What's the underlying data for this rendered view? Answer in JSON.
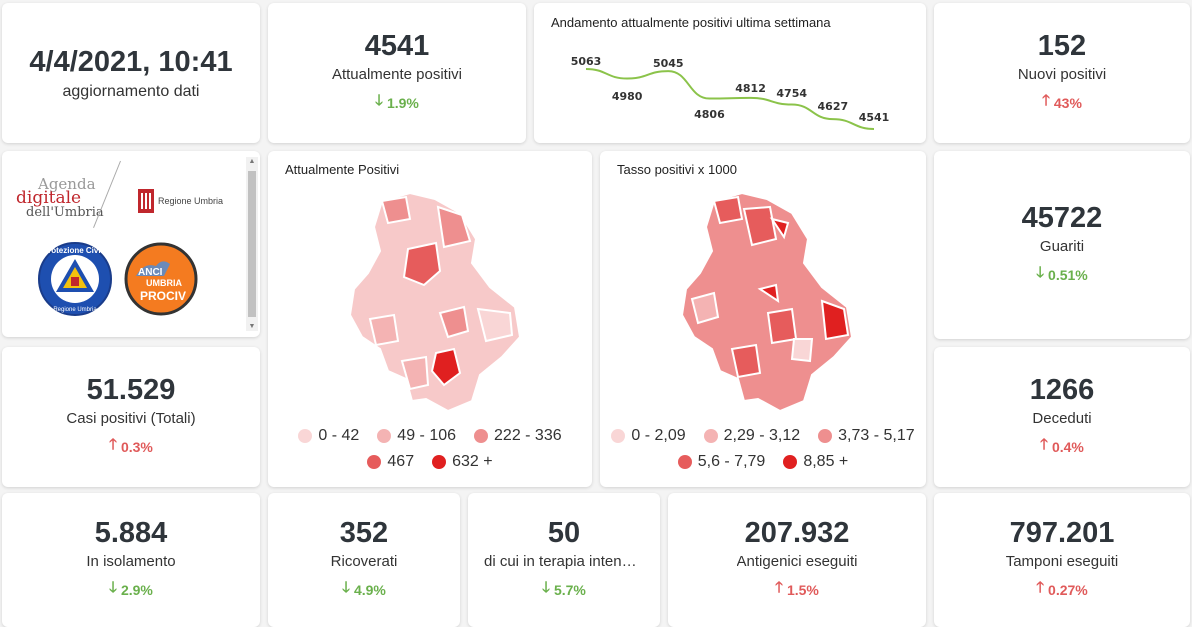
{
  "update": {
    "datetime": "4/4/2021, 10:41",
    "label": "aggiornamento dati"
  },
  "attualmente_positivi": {
    "value": "4541",
    "label": "Attualmente positivi",
    "delta": "1.9%",
    "direction": "down"
  },
  "trend": {
    "title": "Andamento attualmente positivi ultima settimana",
    "values": [
      5063,
      4980,
      5045,
      4806,
      4812,
      4754,
      4627,
      4541
    ],
    "labels": [
      "5063",
      "4980",
      "5045",
      "4806",
      "4812",
      "4754",
      "4627",
      "4541"
    ],
    "color": "#8bc34a"
  },
  "nuovi_positivi": {
    "value": "152",
    "label": "Nuovi positivi",
    "delta": "43%",
    "direction": "up"
  },
  "logos": {
    "agenda_line1": "Agenda",
    "agenda_line2": "digitale",
    "agenda_line3": "dell'Umbria",
    "regione": "Regione Umbria",
    "protezione_top": "Protezione Civile",
    "protezione_bottom": "Regione Umbria",
    "anci_line1": "ANCI",
    "anci_line2": "UMBRIA",
    "anci_line3": "PROCIV"
  },
  "map_positivi": {
    "title": "Attualmente Positivi",
    "legend": [
      {
        "label": "0 - 42",
        "color": "#f9d6d6"
      },
      {
        "label": "49 - 106",
        "color": "#f4b3b3"
      },
      {
        "label": "222 - 336",
        "color": "#ee8f8f"
      },
      {
        "label": "467",
        "color": "#e65c5c"
      },
      {
        "label": "632 +",
        "color": "#e02020"
      }
    ]
  },
  "map_tasso": {
    "title": "Tasso positivi x 1000",
    "legend": [
      {
        "label": "0 - 2,09",
        "color": "#f9d6d6"
      },
      {
        "label": "2,29 - 3,12",
        "color": "#f4b3b3"
      },
      {
        "label": "3,73 - 5,17",
        "color": "#ee8f8f"
      },
      {
        "label": "5,6 - 7,79",
        "color": "#e65c5c"
      },
      {
        "label": "8,85 +",
        "color": "#e02020"
      }
    ]
  },
  "guariti": {
    "value": "45722",
    "label": "Guariti",
    "delta": "0.51%",
    "direction": "down"
  },
  "casi_totali": {
    "value": "51.529",
    "label": "Casi positivi (Totali)",
    "delta": "0.3%",
    "direction": "up"
  },
  "deceduti": {
    "value": "1266",
    "label": "Deceduti",
    "delta": "0.4%",
    "direction": "up"
  },
  "isolamento": {
    "value": "5.884",
    "label": "In isolamento",
    "delta": "2.9%",
    "direction": "down"
  },
  "ricoverati": {
    "value": "352",
    "label": "Ricoverati",
    "delta": "4.9%",
    "direction": "down"
  },
  "terapia": {
    "value": "50",
    "label": "di cui in terapia intensiva",
    "delta": "5.7%",
    "direction": "down"
  },
  "antigenici": {
    "value": "207.932",
    "label": "Antigenici eseguiti",
    "delta": "1.5%",
    "direction": "up"
  },
  "tamponi": {
    "value": "797.201",
    "label": "Tamponi eseguiti",
    "delta": "0.27%",
    "direction": "up"
  },
  "arrows": {
    "up": "🡑",
    "down": "🡓"
  }
}
